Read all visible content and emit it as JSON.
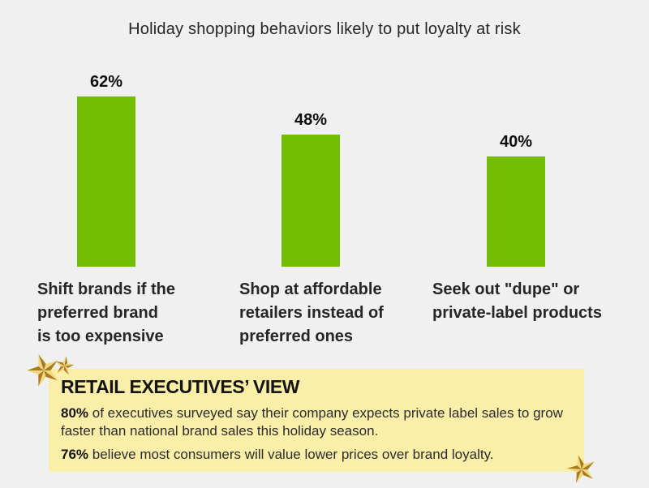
{
  "title": "Holiday shopping behaviors likely to put loyalty at risk",
  "chart_data": {
    "type": "bar",
    "title": "Holiday shopping behaviors likely to put loyalty at risk",
    "categories": [
      "Shift brands if the preferred brand is too expensive",
      "Shop at affordable retailers instead of preferred ones",
      "Seek out \"dupe\" or private-label products"
    ],
    "values": [
      62,
      48,
      40
    ],
    "value_labels": [
      "62%",
      "48%",
      "40%"
    ],
    "xlabel": "",
    "ylabel": "",
    "ylim": [
      0,
      70
    ],
    "grid": false,
    "legend": "none",
    "bar_color": "#72bc04"
  },
  "bar_labels_display": [
    "Shift brands if the\npreferred brand\nis too expensive",
    "Shop at affordable\nretailers instead of\npreferred ones",
    "Seek out \"dupe\" or\nprivate-label products"
  ],
  "callout": {
    "heading": "RETAIL EXECUTIVES’ VIEW",
    "point1_stat": "80%",
    "point1_text": " of executives surveyed say their company expects private label sales to grow faster than national brand sales this holiday season.",
    "point2_stat": "76%",
    "point2_text": " believe most consumers will value lower prices over brand loyalty.",
    "background": "#faefa9"
  },
  "colors": {
    "background": "#f0f0f0",
    "bar": "#72bc04",
    "text": "#262626",
    "star_light": "#f2d87f",
    "star_dark": "#a87c1e"
  },
  "icons": [
    {
      "name": "star-icon",
      "description": "decorative gold star"
    }
  ]
}
